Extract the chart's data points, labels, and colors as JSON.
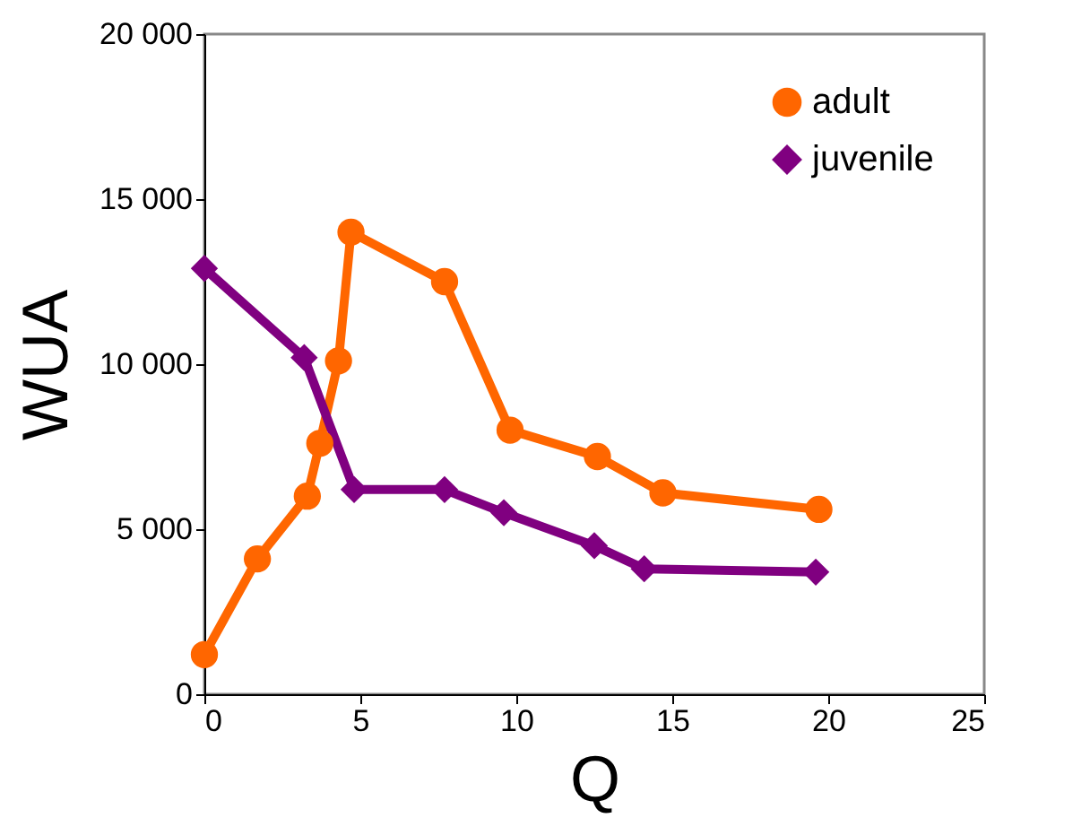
{
  "chart_data": {
    "type": "line",
    "xlabel": "Q",
    "ylabel": "WUA",
    "xlim": [
      0,
      25
    ],
    "xticks": [
      0,
      5,
      10,
      15,
      20,
      25
    ],
    "ylim": [
      0,
      20000
    ],
    "yticks": [
      {
        "value": 0,
        "label": "0"
      },
      {
        "value": 5000,
        "label": "5 000"
      },
      {
        "value": 10000,
        "label": "10 000"
      },
      {
        "value": 15000,
        "label": "15 000"
      },
      {
        "value": 20000,
        "label": "20 000"
      }
    ],
    "grid": false,
    "legend": "top right",
    "line_style": "solid",
    "series": [
      {
        "name": "adult",
        "color": "#ff6600",
        "marker": "circle",
        "x": [
          0,
          1.7,
          3.3,
          3.7,
          4.3,
          4.7,
          7.7,
          9.8,
          12.6,
          14.7,
          19.7
        ],
        "values": [
          1200,
          4100,
          6000,
          7600,
          10100,
          14000,
          12500,
          8000,
          7200,
          6100,
          5600
        ]
      },
      {
        "name": "juvenile",
        "color": "#800080",
        "marker": "diamond",
        "x": [
          0,
          3.2,
          4.8,
          7.7,
          9.6,
          12.5,
          14.1,
          19.6
        ],
        "values": [
          12900,
          10200,
          6200,
          6200,
          5500,
          4500,
          3800,
          3700
        ]
      }
    ]
  }
}
